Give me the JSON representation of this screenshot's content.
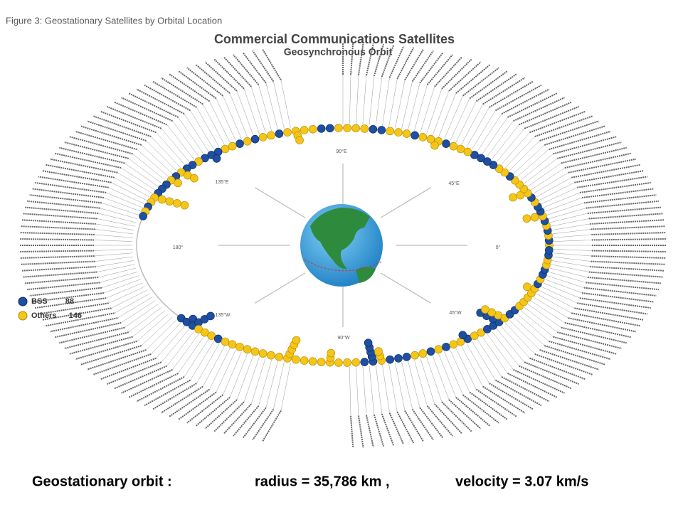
{
  "figure_caption": "Figure 3: Geostationary Satellites by Orbital Location",
  "title": "Commercial Communications Satellites",
  "subtitle": "Geosynchronous Orbit",
  "directions": [
    "90°E",
    "45°E",
    "0°",
    "45°W",
    "90°W",
    "135°W",
    "180°",
    "135°E"
  ],
  "legend": [
    {
      "label": "BSS",
      "count": 88
    },
    {
      "label": "Others",
      "count": 146
    }
  ],
  "footer": {
    "label": "Geostationary orbit :",
    "radius": "radius = 35,786 km ,",
    "velocity": "velocity = 3.07 km/s"
  }
}
